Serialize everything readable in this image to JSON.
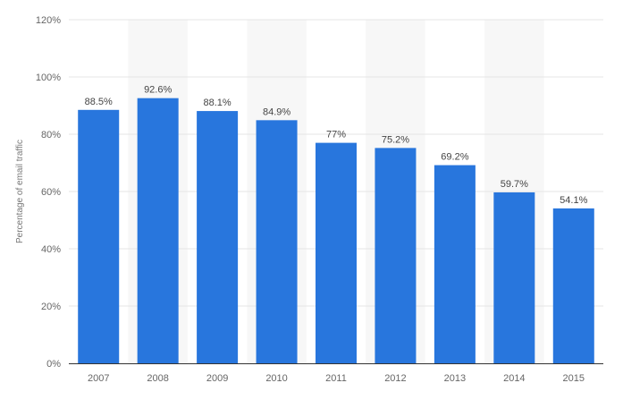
{
  "chart_data": {
    "type": "bar",
    "title": "",
    "xlabel": "",
    "ylabel": "Percentage of email traffic",
    "categories": [
      "2007",
      "2008",
      "2009",
      "2010",
      "2011",
      "2012",
      "2013",
      "2014",
      "2015"
    ],
    "values": [
      88.5,
      92.6,
      88.1,
      84.9,
      77,
      75.2,
      69.2,
      59.7,
      54.1
    ],
    "value_labels": [
      "88.5%",
      "92.6%",
      "88.1%",
      "84.9%",
      "77%",
      "75.2%",
      "69.2%",
      "59.7%",
      "54.1%"
    ],
    "ylim": [
      0,
      120
    ],
    "yticks": [
      0,
      20,
      40,
      60,
      80,
      100,
      120
    ],
    "ytick_labels": [
      "0%",
      "20%",
      "40%",
      "60%",
      "80%",
      "100%",
      "120%"
    ],
    "grid": true,
    "legend": "none",
    "colors": {
      "bar": "#2876dd",
      "grid": "#e6e6e6",
      "band": "#f7f7f7",
      "axis": "#333333"
    }
  }
}
